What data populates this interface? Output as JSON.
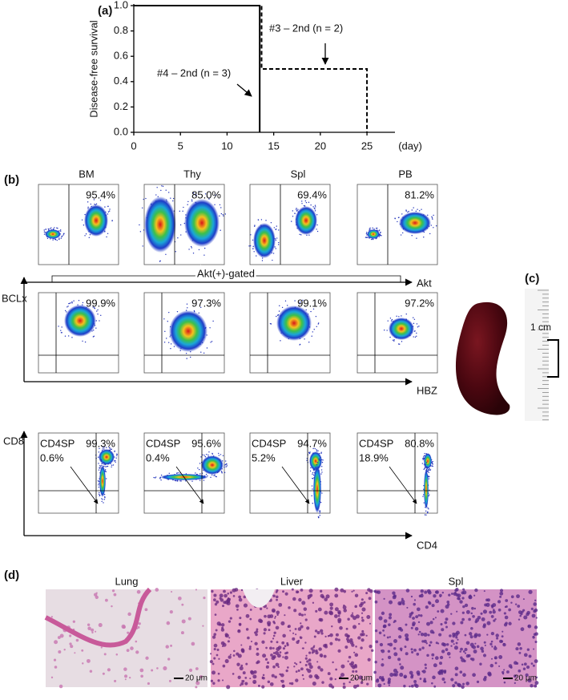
{
  "chart_data": {
    "type": "line",
    "label": "(a)",
    "ylabel": "Disease-free survival",
    "xlabel": "(day)",
    "xlim": [
      0,
      28
    ],
    "xticks": [
      0,
      5,
      10,
      15,
      20,
      25
    ],
    "ylim": [
      0,
      1
    ],
    "yticks": [
      {
        "value": 0,
        "label": "0.0"
      },
      {
        "value": 0.2,
        "label": "0.2"
      },
      {
        "value": 0.4,
        "label": "0.4"
      },
      {
        "value": 0.6,
        "label": "0.6"
      },
      {
        "value": 0.8,
        "label": "0.8"
      },
      {
        "value": 1,
        "label": "1.0"
      }
    ],
    "series": [
      {
        "name": "#4 – 2nd (n = 3)",
        "color": "#000000",
        "dash": "solid",
        "x": [
          0,
          13.5,
          13.5
        ],
        "values": [
          1,
          1,
          0
        ]
      },
      {
        "name": "#3 – 2nd (n = 2)",
        "color": "#000000",
        "dash": "dashed",
        "x": [
          0,
          13.7,
          13.7,
          25,
          25
        ],
        "values": [
          1,
          1,
          0.5,
          0.5,
          0
        ]
      }
    ]
  },
  "flow": {
    "label": "(b)",
    "column_titles": [
      "BM",
      "Thy",
      "Spl",
      "PB"
    ],
    "rows": [
      {
        "x_label": "Akt",
        "percents": [
          "95.4%",
          "85.0%",
          "69.4%",
          "81.2%"
        ]
      },
      {
        "gate": "Akt(+)-gated",
        "y_label": "BCLx",
        "x_label": "HBZ",
        "percents": [
          "99.9%",
          "97.3%",
          "99.1%",
          "97.2%"
        ]
      },
      {
        "y_label": "CD8",
        "x_label": "CD4",
        "percents": [
          "99.3%",
          "95.6%",
          "94.7%",
          "80.8%"
        ],
        "subset": "CD4SP",
        "subset_percents": [
          "0.6%",
          "0.4%",
          "5.2%",
          "18.9%"
        ]
      }
    ]
  },
  "photo": {
    "label": "(c)",
    "scale": "1 cm"
  },
  "histology": {
    "label": "(d)",
    "titles": [
      "Lung",
      "Liver",
      "Spl"
    ],
    "scale": "20 μm"
  }
}
